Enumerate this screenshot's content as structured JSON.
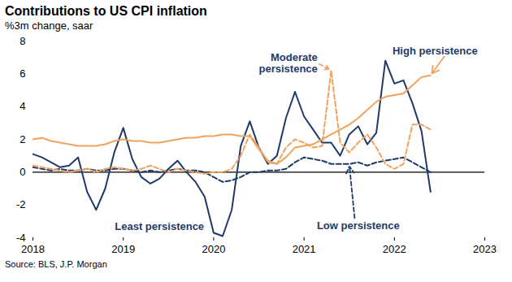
{
  "chart_data": {
    "type": "line",
    "title": "Contributions to US CPI inflation",
    "subtitle": "%3m change, saar",
    "source": "Source: BLS, J.P. Morgan",
    "x": [
      2018.0,
      2018.1,
      2018.2,
      2018.3,
      2018.4,
      2018.5,
      2018.6,
      2018.7,
      2018.8,
      2018.9,
      2019.0,
      2019.1,
      2019.2,
      2019.3,
      2019.4,
      2019.5,
      2019.6,
      2019.7,
      2019.8,
      2019.9,
      2020.0,
      2020.1,
      2020.2,
      2020.3,
      2020.4,
      2020.5,
      2020.6,
      2020.7,
      2020.8,
      2020.9,
      2021.0,
      2021.1,
      2021.2,
      2021.3,
      2021.4,
      2021.5,
      2021.6,
      2021.7,
      2021.8,
      2021.9,
      2022.0,
      2022.1,
      2022.2,
      2022.3,
      2022.4
    ],
    "series": [
      {
        "name": "Least persistence",
        "color": "#1f3a68",
        "line_style": "solid",
        "values": [
          1.1,
          0.9,
          0.6,
          0.3,
          0.4,
          0.9,
          -1.2,
          -2.3,
          -1.0,
          1.2,
          2.7,
          0.8,
          -0.3,
          -0.7,
          -0.4,
          0.2,
          0.7,
          0.0,
          -0.6,
          -1.5,
          -3.7,
          -3.9,
          -2.3,
          1.6,
          3.1,
          1.5,
          0.5,
          1.0,
          3.3,
          4.9,
          3.4,
          2.6,
          1.8,
          1.8,
          1.0,
          2.3,
          2.8,
          1.7,
          2.4,
          6.8,
          5.4,
          5.6,
          4.2,
          2.5,
          -1.2
        ]
      },
      {
        "name": "Low persistence",
        "color": "#1f3a68",
        "line_style": "dashed",
        "values": [
          0.3,
          0.2,
          0.1,
          0.2,
          0.1,
          0.1,
          0.2,
          0.1,
          0.1,
          0.2,
          0.2,
          0.1,
          0.0,
          0.1,
          0.0,
          0.1,
          0.2,
          0.1,
          0.1,
          0.0,
          -0.3,
          -0.6,
          -0.5,
          -0.3,
          0.0,
          0.0,
          0.1,
          0.1,
          0.2,
          0.6,
          0.9,
          0.8,
          0.7,
          0.5,
          0.5,
          0.5,
          0.6,
          0.4,
          0.6,
          0.7,
          0.8,
          0.9,
          0.6,
          0.3,
          0.0
        ]
      },
      {
        "name": "Moderate persistence",
        "color": "#f0a35e",
        "line_style": "dashed",
        "values": [
          0.4,
          0.3,
          0.2,
          0.1,
          0.0,
          0.1,
          0.2,
          0.0,
          0.2,
          0.3,
          0.2,
          0.1,
          0.2,
          0.4,
          0.2,
          0.0,
          0.2,
          0.1,
          0.0,
          -0.1,
          0.0,
          0.0,
          0.2,
          1.0,
          2.3,
          1.5,
          0.6,
          0.5,
          1.5,
          2.0,
          1.8,
          1.5,
          1.6,
          6.2,
          1.8,
          1.2,
          1.8,
          2.3,
          1.5,
          0.5,
          0.2,
          0.5,
          2.9,
          2.9,
          2.6
        ]
      },
      {
        "name": "High persistence",
        "color": "#f0a35e",
        "line_style": "solid",
        "values": [
          2.0,
          2.1,
          1.9,
          1.8,
          1.7,
          1.6,
          1.6,
          1.6,
          1.7,
          1.9,
          2.0,
          1.9,
          1.9,
          1.8,
          1.8,
          1.9,
          2.0,
          2.1,
          2.1,
          2.2,
          2.2,
          2.3,
          2.3,
          2.2,
          2.2,
          1.4,
          0.7,
          0.5,
          0.9,
          1.5,
          1.6,
          1.7,
          2.0,
          2.3,
          2.6,
          2.9,
          3.3,
          3.8,
          4.3,
          4.6,
          4.7,
          4.8,
          5.3,
          5.8,
          5.9
        ]
      }
    ],
    "xlim": [
      2018,
      2023
    ],
    "xticks": [
      2018,
      2019,
      2020,
      2021,
      2022,
      2023
    ],
    "ylim": [
      -4,
      8
    ],
    "yticks": [
      -4,
      -2,
      0,
      2,
      4,
      6,
      8
    ],
    "grid": false
  }
}
